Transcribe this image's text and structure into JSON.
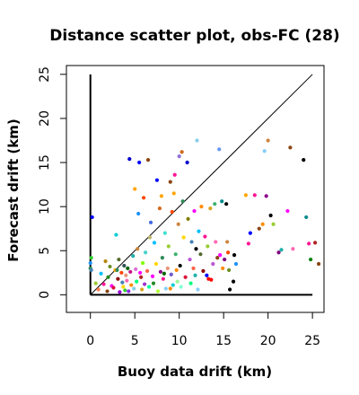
{
  "chart_data": {
    "type": "scatter",
    "title": "Distance scatter plot, obs-FC (28)",
    "xlabel": "Buoy data drift (km)",
    "ylabel": "Forecast drift (km)",
    "xlim": [
      -2.7,
      26.3
    ],
    "ylim": [
      -2.0,
      26.0
    ],
    "xticks": [
      "0",
      "5",
      "10",
      "15",
      "20",
      "25"
    ],
    "yticks": [
      "0",
      "5",
      "10",
      "15",
      "20",
      "25"
    ],
    "grid": false,
    "legend": "none",
    "reference_lines": [
      {
        "name": "vertical-axis-line",
        "x": [
          0,
          0
        ],
        "y": [
          0,
          25
        ],
        "color": "#000000"
      },
      {
        "name": "horizontal-axis-line",
        "x": [
          0,
          25
        ],
        "y": [
          0,
          0
        ],
        "color": "#000000"
      },
      {
        "name": "one-to-one-line",
        "x": [
          0,
          25
        ],
        "y": [
          0,
          25
        ],
        "color": "#000000"
      }
    ],
    "points": [
      {
        "x": 0.2,
        "y": 8.8,
        "color": "#0000ff"
      },
      {
        "x": 0.0,
        "y": 3.6,
        "color": "#1e90ff"
      },
      {
        "x": 0.0,
        "y": 3.0,
        "color": "#2e8b57"
      },
      {
        "x": 0.1,
        "y": 4.2,
        "color": "#32cd32"
      },
      {
        "x": 0.6,
        "y": 1.3,
        "color": "#9acd32"
      },
      {
        "x": 0.9,
        "y": 0.6,
        "color": "#ff7f50"
      },
      {
        "x": 1.2,
        "y": 2.4,
        "color": "#00bfff"
      },
      {
        "x": 1.5,
        "y": 1.2,
        "color": "#ff1493"
      },
      {
        "x": 1.7,
        "y": 3.8,
        "color": "#b8860b"
      },
      {
        "x": 1.9,
        "y": 0.4,
        "color": "#8b4513"
      },
      {
        "x": 2.0,
        "y": 2.0,
        "color": "#228b22"
      },
      {
        "x": 2.2,
        "y": 3.2,
        "color": "#6b8e23"
      },
      {
        "x": 2.4,
        "y": 1.0,
        "color": "#ff00ff"
      },
      {
        "x": 2.6,
        "y": 0.8,
        "color": "#dc143c"
      },
      {
        "x": 2.8,
        "y": 2.8,
        "color": "#ffa500"
      },
      {
        "x": 2.9,
        "y": 6.8,
        "color": "#00ced1"
      },
      {
        "x": 3.1,
        "y": 1.8,
        "color": "#8b0000"
      },
      {
        "x": 3.2,
        "y": 4.0,
        "color": "#556b2f"
      },
      {
        "x": 3.3,
        "y": 0.3,
        "color": "#9400d3"
      },
      {
        "x": 3.5,
        "y": 2.5,
        "color": "#ff4500"
      },
      {
        "x": 3.6,
        "y": 1.4,
        "color": "#4682b4"
      },
      {
        "x": 3.7,
        "y": 0.9,
        "color": "#ffd700"
      },
      {
        "x": 3.8,
        "y": 3.3,
        "color": "#2f4f4f"
      },
      {
        "x": 3.9,
        "y": 0.5,
        "color": "#32cd32"
      },
      {
        "x": 4.0,
        "y": 2.2,
        "color": "#e9967a"
      },
      {
        "x": 4.1,
        "y": 1.6,
        "color": "#ff69b4"
      },
      {
        "x": 4.2,
        "y": 3.0,
        "color": "#006400"
      },
      {
        "x": 4.3,
        "y": 0.4,
        "color": "#8a2be2"
      },
      {
        "x": 4.4,
        "y": 15.4,
        "color": "#0000cd"
      },
      {
        "x": 4.5,
        "y": 2.6,
        "color": "#c71585"
      },
      {
        "x": 4.6,
        "y": 1.1,
        "color": "#ff8c00"
      },
      {
        "x": 4.8,
        "y": 4.4,
        "color": "#20b2aa"
      },
      {
        "x": 4.9,
        "y": 0.7,
        "color": "#87ceeb"
      },
      {
        "x": 5.0,
        "y": 12.0,
        "color": "#ffa500"
      },
      {
        "x": 5.1,
        "y": 2.9,
        "color": "#da70d6"
      },
      {
        "x": 5.2,
        "y": 1.5,
        "color": "#00ff7f"
      },
      {
        "x": 5.3,
        "y": 5.2,
        "color": "#cd853f"
      },
      {
        "x": 5.4,
        "y": 9.2,
        "color": "#1e90ff"
      },
      {
        "x": 5.5,
        "y": 15.0,
        "color": "#0000ff"
      },
      {
        "x": 5.7,
        "y": 2.0,
        "color": "#b22222"
      },
      {
        "x": 5.8,
        "y": 0.6,
        "color": "#daa520"
      },
      {
        "x": 5.9,
        "y": 3.6,
        "color": "#7fff00"
      },
      {
        "x": 6.0,
        "y": 11.0,
        "color": "#ff4500"
      },
      {
        "x": 6.1,
        "y": 1.2,
        "color": "#9932cc"
      },
      {
        "x": 6.2,
        "y": 4.8,
        "color": "#48d1cc"
      },
      {
        "x": 6.4,
        "y": 2.7,
        "color": "#ff6347"
      },
      {
        "x": 6.5,
        "y": 15.3,
        "color": "#8b4513"
      },
      {
        "x": 6.6,
        "y": 0.9,
        "color": "#00fa9a"
      },
      {
        "x": 6.7,
        "y": 6.5,
        "color": "#bdb76b"
      },
      {
        "x": 6.8,
        "y": 8.2,
        "color": "#4169e1"
      },
      {
        "x": 7.0,
        "y": 2.1,
        "color": "#ff00ff"
      },
      {
        "x": 7.1,
        "y": 1.3,
        "color": "#228b22"
      },
      {
        "x": 7.2,
        "y": 5.9,
        "color": "#00bfff"
      },
      {
        "x": 7.4,
        "y": 3.5,
        "color": "#ffd700"
      },
      {
        "x": 7.5,
        "y": 13.0,
        "color": "#0000ff"
      },
      {
        "x": 7.6,
        "y": 0.4,
        "color": "#adff2f"
      },
      {
        "x": 7.8,
        "y": 9.8,
        "color": "#d2691e"
      },
      {
        "x": 7.9,
        "y": 2.6,
        "color": "#8b008b"
      },
      {
        "x": 8.0,
        "y": 11.2,
        "color": "#ffa500"
      },
      {
        "x": 8.1,
        "y": 4.2,
        "color": "#2e8b57"
      },
      {
        "x": 8.2,
        "y": 1.8,
        "color": "#ff1493"
      },
      {
        "x": 8.4,
        "y": 7.0,
        "color": "#40e0d0"
      },
      {
        "x": 8.5,
        "y": 0.7,
        "color": "#87cefa"
      },
      {
        "x": 8.7,
        "y": 3.0,
        "color": "#e9967a"
      },
      {
        "x": 8.8,
        "y": 5.5,
        "color": "#9acd32"
      },
      {
        "x": 9.0,
        "y": 12.8,
        "color": "#8b4513"
      },
      {
        "x": 9.1,
        "y": 2.3,
        "color": "#6a5acd"
      },
      {
        "x": 9.2,
        "y": 9.4,
        "color": "#ff4500"
      },
      {
        "x": 9.3,
        "y": 1.1,
        "color": "#00ced1"
      },
      {
        "x": 9.4,
        "y": 11.5,
        "color": "#ffa500"
      },
      {
        "x": 9.5,
        "y": 13.6,
        "color": "#ff1493"
      },
      {
        "x": 9.6,
        "y": 4.6,
        "color": "#3cb371"
      },
      {
        "x": 9.7,
        "y": 2.8,
        "color": "#ff8c00"
      },
      {
        "x": 9.8,
        "y": 1.5,
        "color": "#98fb98"
      },
      {
        "x": 9.9,
        "y": 8.0,
        "color": "#cd853f"
      },
      {
        "x": 10.0,
        "y": 15.7,
        "color": "#9370db"
      },
      {
        "x": 10.1,
        "y": 3.3,
        "color": "#000000"
      },
      {
        "x": 10.2,
        "y": 0.9,
        "color": "#7fffd4"
      },
      {
        "x": 10.3,
        "y": 16.2,
        "color": "#d2691e"
      },
      {
        "x": 10.4,
        "y": 10.6,
        "color": "#2e8b57"
      },
      {
        "x": 10.5,
        "y": 6.5,
        "color": "#ffd700"
      },
      {
        "x": 10.7,
        "y": 2.0,
        "color": "#dc143c"
      },
      {
        "x": 10.9,
        "y": 15.0,
        "color": "#0000cd"
      },
      {
        "x": 11.0,
        "y": 8.6,
        "color": "#808000"
      },
      {
        "x": 11.2,
        "y": 4.0,
        "color": "#ba55d3"
      },
      {
        "x": 11.3,
        "y": 1.3,
        "color": "#00ff7f"
      },
      {
        "x": 11.4,
        "y": 6.0,
        "color": "#4682b4"
      },
      {
        "x": 11.6,
        "y": 3.0,
        "color": "#ff6347"
      },
      {
        "x": 11.7,
        "y": 9.5,
        "color": "#ff00ff"
      },
      {
        "x": 11.8,
        "y": 2.2,
        "color": "#20b2aa"
      },
      {
        "x": 11.9,
        "y": 5.2,
        "color": "#000000"
      },
      {
        "x": 12.0,
        "y": 17.5,
        "color": "#87ceeb"
      },
      {
        "x": 12.1,
        "y": 0.6,
        "color": "#87cefa"
      },
      {
        "x": 12.2,
        "y": 7.2,
        "color": "#00bfff"
      },
      {
        "x": 12.4,
        "y": 4.6,
        "color": "#556b2f"
      },
      {
        "x": 12.5,
        "y": 10.0,
        "color": "#ff8c00"
      },
      {
        "x": 12.7,
        "y": 2.7,
        "color": "#8b0000"
      },
      {
        "x": 12.9,
        "y": 6.6,
        "color": "#ff1493"
      },
      {
        "x": 13.1,
        "y": 2.2,
        "color": "#0000ff"
      },
      {
        "x": 13.2,
        "y": 5.5,
        "color": "#9acd32"
      },
      {
        "x": 13.3,
        "y": 1.8,
        "color": "#ff0000"
      },
      {
        "x": 13.5,
        "y": 9.8,
        "color": "#daa520"
      },
      {
        "x": 13.6,
        "y": 1.7,
        "color": "#ff0000"
      },
      {
        "x": 13.8,
        "y": 3.5,
        "color": "#ba55d3"
      },
      {
        "x": 14.0,
        "y": 10.3,
        "color": "#3cb371"
      },
      {
        "x": 14.1,
        "y": 6.0,
        "color": "#ff69b4"
      },
      {
        "x": 14.3,
        "y": 4.2,
        "color": "#8b4513"
      },
      {
        "x": 14.5,
        "y": 16.5,
        "color": "#6495ed"
      },
      {
        "x": 14.6,
        "y": 4.5,
        "color": "#ff00ff"
      },
      {
        "x": 14.8,
        "y": 10.6,
        "color": "#008b8b"
      },
      {
        "x": 14.9,
        "y": 3.0,
        "color": "#ff8c00"
      },
      {
        "x": 15.1,
        "y": 4.0,
        "color": "#800080"
      },
      {
        "x": 15.3,
        "y": 10.3,
        "color": "#000000"
      },
      {
        "x": 15.4,
        "y": 6.0,
        "color": "#cd853f"
      },
      {
        "x": 15.5,
        "y": 4.8,
        "color": "#ff4500"
      },
      {
        "x": 15.6,
        "y": 2.8,
        "color": "#6b8e23"
      },
      {
        "x": 15.7,
        "y": 0.6,
        "color": "#000000"
      },
      {
        "x": 16.2,
        "y": 4.5,
        "color": "#000000"
      },
      {
        "x": 16.4,
        "y": 3.5,
        "color": "#1e90ff"
      },
      {
        "x": 16.1,
        "y": 1.5,
        "color": "#000000"
      },
      {
        "x": 17.5,
        "y": 11.3,
        "color": "#ffa500"
      },
      {
        "x": 17.8,
        "y": 5.8,
        "color": "#ff1493"
      },
      {
        "x": 18.0,
        "y": 7.0,
        "color": "#0000ff"
      },
      {
        "x": 18.5,
        "y": 11.3,
        "color": "#ff1493"
      },
      {
        "x": 19.0,
        "y": 7.5,
        "color": "#8b4513"
      },
      {
        "x": 19.4,
        "y": 8.0,
        "color": "#ff8c00"
      },
      {
        "x": 19.6,
        "y": 16.3,
        "color": "#87cefa"
      },
      {
        "x": 19.8,
        "y": 11.2,
        "color": "#8b008b"
      },
      {
        "x": 20.0,
        "y": 17.5,
        "color": "#cd853f"
      },
      {
        "x": 20.3,
        "y": 9.0,
        "color": "#000000"
      },
      {
        "x": 20.6,
        "y": 8.0,
        "color": "#9acd32"
      },
      {
        "x": 21.2,
        "y": 4.8,
        "color": "#800080"
      },
      {
        "x": 21.5,
        "y": 5.1,
        "color": "#20b2aa"
      },
      {
        "x": 22.2,
        "y": 9.5,
        "color": "#ff00ff"
      },
      {
        "x": 22.5,
        "y": 16.7,
        "color": "#8b4513"
      },
      {
        "x": 22.8,
        "y": 5.2,
        "color": "#ff69b4"
      },
      {
        "x": 24.0,
        "y": 15.3,
        "color": "#000000"
      },
      {
        "x": 24.3,
        "y": 8.8,
        "color": "#008b8b"
      },
      {
        "x": 24.6,
        "y": 5.8,
        "color": "#ff1493"
      },
      {
        "x": 24.8,
        "y": 4.0,
        "color": "#008000"
      },
      {
        "x": 25.3,
        "y": 5.9,
        "color": "#b22222"
      },
      {
        "x": 25.7,
        "y": 3.5,
        "color": "#8b4513"
      },
      {
        "x": 0.1,
        "y": 2.8,
        "color": "#4682b4"
      },
      {
        "x": 3.0,
        "y": 2.8,
        "color": "#2e8b57"
      },
      {
        "x": 5.6,
        "y": 2.5,
        "color": "#ff00ff"
      },
      {
        "x": 8.3,
        "y": 2.4,
        "color": "#006400"
      },
      {
        "x": 9.0,
        "y": 0.7,
        "color": "#ff8c00"
      }
    ]
  }
}
